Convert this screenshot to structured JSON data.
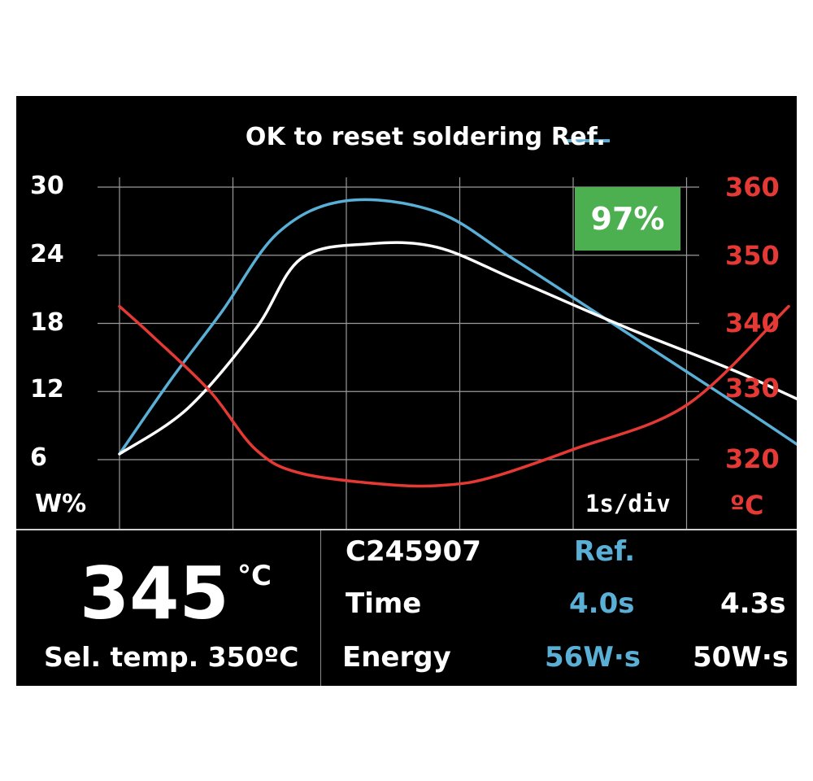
{
  "header": {
    "title": "OK to reset soldering Ref."
  },
  "badge": {
    "percent": "97%"
  },
  "chart": {
    "scale_label": "1s/div"
  },
  "chart_data": {
    "type": "line",
    "x": [
      0,
      1,
      2,
      3,
      4,
      5,
      6,
      7,
      8
    ],
    "left_axis": {
      "label": "W%",
      "ticks": [
        "30",
        "24",
        "18",
        "12",
        "6"
      ],
      "ylim": [
        6,
        30
      ]
    },
    "right_axis": {
      "label": "ºC",
      "ticks": [
        "360",
        "350",
        "340",
        "330",
        "320"
      ],
      "ylim": [
        320,
        360
      ]
    },
    "series": [
      {
        "color": "#5aafd6",
        "axis": "left",
        "x": [
          0,
          0.45,
          0.9,
          1.4,
          2.0,
          2.8,
          3.5,
          4.5,
          5.5,
          6.1
        ],
        "values": [
          6.5,
          13,
          19,
          26,
          28.8,
          27.8,
          23.5,
          17,
          10.5,
          6.5
        ]
      },
      {
        "color": "#ffffff",
        "axis": "left",
        "x": [
          0,
          0.6,
          1.2,
          1.6,
          2.2,
          2.8,
          3.5,
          4.5,
          5.5,
          6.6
        ],
        "values": [
          6.5,
          10.5,
          17.5,
          23.7,
          25.0,
          24.7,
          21.8,
          17.5,
          13.5,
          8.4
        ]
      },
      {
        "color": "#e53935",
        "axis": "right",
        "x": [
          0,
          0.3,
          0.8,
          1.2,
          1.6,
          2.4,
          2.9,
          3.3,
          4.0,
          5.0,
          5.9
        ],
        "values": [
          342.5,
          338,
          330,
          321.5,
          318,
          316.3,
          316.3,
          317.5,
          321.5,
          328,
          342.5
        ]
      }
    ]
  },
  "bottom": {
    "current_temp": "345",
    "current_unit": "°C",
    "selected_temp": "Sel. temp. 350ºC",
    "table": {
      "tip_id": "C245907",
      "ref_header": "Ref.",
      "time_label": "Time",
      "time_ref": "4.0s",
      "time_current": "4.3s",
      "energy_label": "Energy",
      "energy_ref": "56W·s",
      "energy_current": "50W·s"
    }
  }
}
